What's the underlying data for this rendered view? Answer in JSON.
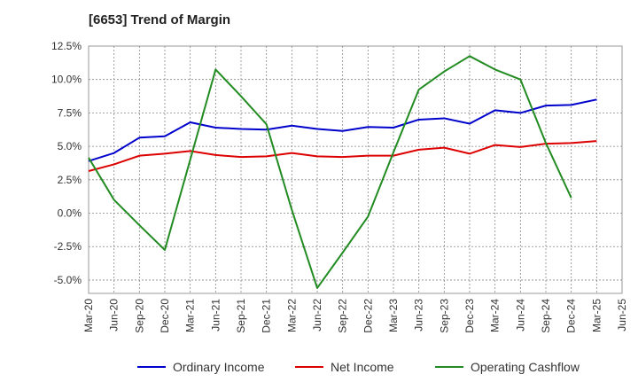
{
  "chart_data": {
    "type": "line",
    "title": "[6653]  Trend of Margin",
    "x": [
      "Mar-20",
      "Jun-20",
      "Sep-20",
      "Dec-20",
      "Mar-21",
      "Jun-21",
      "Sep-21",
      "Dec-21",
      "Mar-22",
      "Jun-22",
      "Sep-22",
      "Dec-22",
      "Mar-23",
      "Jun-23",
      "Sep-23",
      "Dec-23",
      "Mar-24",
      "Jun-24",
      "Sep-24",
      "Dec-24",
      "Mar-25",
      "Jun-25"
    ],
    "y_ticks": [
      "12.5%",
      "10.0%",
      "7.5%",
      "5.0%",
      "2.5%",
      "0.0%",
      "-2.5%",
      "-5.0%"
    ],
    "y_tick_values": [
      12.5,
      10.0,
      7.5,
      5.0,
      2.5,
      0.0,
      -2.5,
      -5.0
    ],
    "ylim": [
      -6.0,
      12.5
    ],
    "grid": true,
    "legend_position": "bottom",
    "series": [
      {
        "name": "Ordinary Income",
        "color": "#0000cc",
        "values": [
          3.9,
          4.5,
          5.65,
          5.75,
          6.8,
          6.4,
          6.3,
          6.25,
          6.55,
          6.3,
          6.15,
          6.45,
          6.4,
          7.0,
          7.1,
          6.7,
          7.7,
          7.5,
          8.05,
          8.1,
          8.5,
          null
        ]
      },
      {
        "name": "Net Income",
        "color": "#dd0000",
        "values": [
          3.15,
          3.65,
          4.3,
          4.45,
          4.65,
          4.35,
          4.2,
          4.25,
          4.5,
          4.25,
          4.2,
          4.3,
          4.3,
          4.75,
          4.9,
          4.45,
          5.1,
          4.95,
          5.2,
          5.25,
          5.4,
          null
        ]
      },
      {
        "name": "Operating Cashflow",
        "color": "#228b22",
        "values": [
          4.15,
          1.0,
          -0.9,
          -2.75,
          4.0,
          10.75,
          8.75,
          6.65,
          0.25,
          -5.6,
          -2.95,
          -0.25,
          4.55,
          9.25,
          10.6,
          11.75,
          10.75,
          10.0,
          5.25,
          1.15,
          null,
          null
        ]
      }
    ]
  }
}
